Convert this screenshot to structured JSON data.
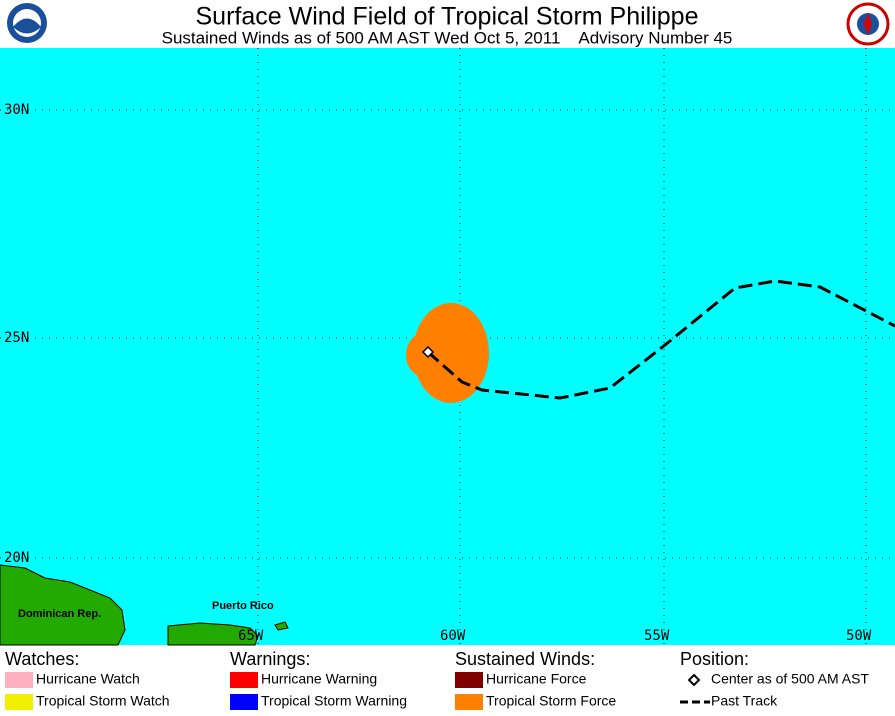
{
  "header": {
    "title": "Surface Wind Field of Tropical Storm Philippe",
    "subtitle": "Sustained Winds as of 500 AM AST Wed Oct 5, 2011    Advisory Number 45"
  },
  "map": {
    "lat_labels": [
      "30N",
      "25N",
      "20N"
    ],
    "lon_labels": [
      "65W",
      "60W",
      "55W",
      "50W"
    ],
    "place_labels": [
      "Dominican Rep.",
      "Puerto Rico"
    ]
  },
  "legend": {
    "groups": [
      {
        "title": "Watches:",
        "items": [
          {
            "label": "Hurricane Watch",
            "color": "#ffb0c0"
          },
          {
            "label": "Tropical Storm Watch",
            "color": "#f0f000"
          }
        ]
      },
      {
        "title": "Warnings:",
        "items": [
          {
            "label": "Hurricane Warning",
            "color": "#ff0000"
          },
          {
            "label": "Tropical Storm Warning",
            "color": "#0000ff"
          }
        ]
      },
      {
        "title": "Sustained Winds:",
        "items": [
          {
            "label": "Hurricane Force",
            "color": "#800000"
          },
          {
            "label": "Tropical Storm Force",
            "color": "#ff8000"
          }
        ]
      },
      {
        "title": "Position:",
        "items": [
          {
            "label": "Center as of 500 AM AST"
          },
          {
            "label": "Past Track"
          }
        ]
      }
    ]
  }
}
